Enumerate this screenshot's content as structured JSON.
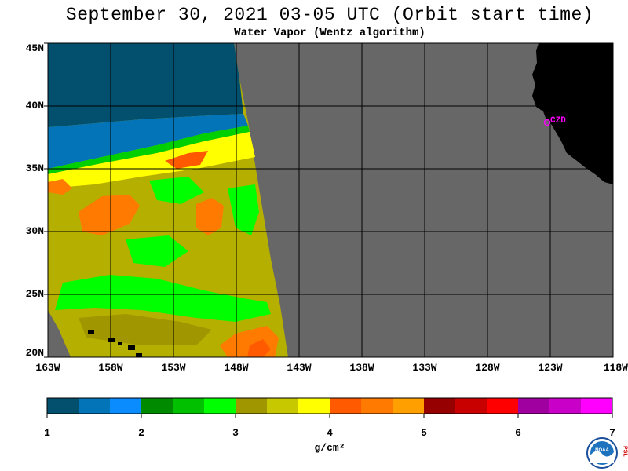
{
  "header": {
    "title": "September 30, 2021  03-05 UTC  (Orbit start time)",
    "subtitle": "Water Vapor (Wentz algorithm)"
  },
  "map": {
    "lat_labels": [
      "45N",
      "40N",
      "35N",
      "30N",
      "25N",
      "20N"
    ],
    "lon_labels": [
      "163W",
      "158W",
      "153W",
      "148W",
      "143W",
      "138W",
      "133W",
      "128W",
      "123W",
      "118W"
    ],
    "station_label": "CZD",
    "colors": {
      "no_data": "#676767",
      "land": "#000000",
      "grid": "#000000",
      "station": "#ff00ff"
    }
  },
  "colorbar": {
    "labels": [
      "1",
      "2",
      "3",
      "4",
      "5",
      "6",
      "7"
    ],
    "units": "g/cm²",
    "colors": [
      "#03506e",
      "#0474b8",
      "#0a8cff",
      "#008a00",
      "#00c000",
      "#00ff00",
      "#a09600",
      "#c8c800",
      "#ffff00",
      "#ff5a00",
      "#ff7a00",
      "#ffa000",
      "#960000",
      "#c80000",
      "#ff0000",
      "#a000a0",
      "#c800c8",
      "#ff00ff"
    ]
  },
  "logos": {
    "noaa_text": "NOAA",
    "psl_text": "PSL"
  }
}
